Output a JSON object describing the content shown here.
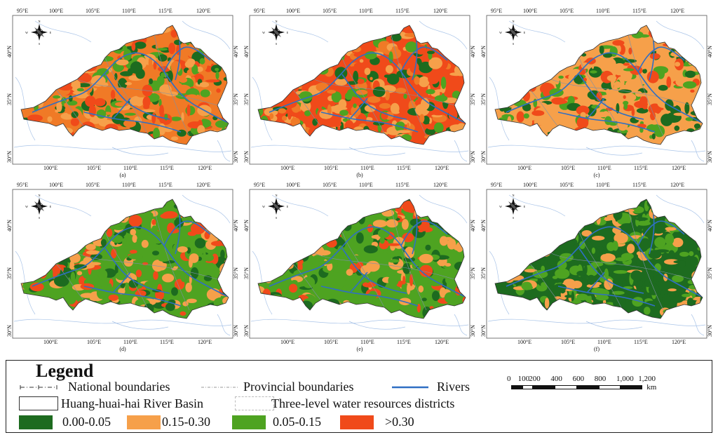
{
  "panels": [
    {
      "label": "(a)",
      "mix": [
        "#f07a26",
        "#f6a04a",
        "#1d6b1f",
        "#4ea321",
        "#f04a1a"
      ]
    },
    {
      "label": "(b)",
      "mix": [
        "#f04a1a",
        "#f6a04a",
        "#4ea321",
        "#1d6b1f",
        "#f07a26"
      ]
    },
    {
      "label": "(c)",
      "mix": [
        "#f6a04a",
        "#f04a1a",
        "#4ea321",
        "#1d6b1f",
        "#f6a04a"
      ]
    },
    {
      "label": "(d)",
      "mix": [
        "#4ea321",
        "#1d6b1f",
        "#4ea321",
        "#f6a04a",
        "#f04a1a"
      ]
    },
    {
      "label": "(e)",
      "mix": [
        "#4ea321",
        "#f04a1a",
        "#1d6b1f",
        "#f6a04a",
        "#4ea321"
      ]
    },
    {
      "label": "(f)",
      "mix": [
        "#1d6b1f",
        "#4ea321",
        "#1d6b1f",
        "#f6a04a",
        "#4ea321"
      ]
    }
  ],
  "lon_top": [
    "95°E",
    "100°E",
    "105°E",
    "110°E",
    "115°E",
    "120°E"
  ],
  "lon_bottom": [
    "100°E",
    "105°E",
    "110°E",
    "115°E",
    "120°E"
  ],
  "lat": [
    "40°N",
    "35°N",
    "30°N"
  ],
  "compass": {
    "n": "N",
    "s": "S",
    "e": "E",
    "w": "W"
  },
  "legend": {
    "title": "Legend",
    "national": "National boundaries",
    "provincial": "Provincial boundaries",
    "rivers": "Rivers",
    "basin": "Huang-huai-hai River Basin",
    "districts": "Three-level water resources districts",
    "classes": [
      {
        "label": "0.00-0.05",
        "color": "#1d6b1f"
      },
      {
        "label": "0.15-0.30",
        "color": "#f6a04a"
      },
      {
        "label": "0.05-0.15",
        "color": "#4ea321"
      },
      {
        "label": ">0.30",
        "color": "#f04a1a"
      }
    ],
    "river_color": "#2f6fc4"
  },
  "scale": {
    "labels": [
      "0",
      "100",
      "200",
      "400",
      "600",
      "800",
      "1,000",
      "1,200"
    ],
    "unit": "km"
  }
}
